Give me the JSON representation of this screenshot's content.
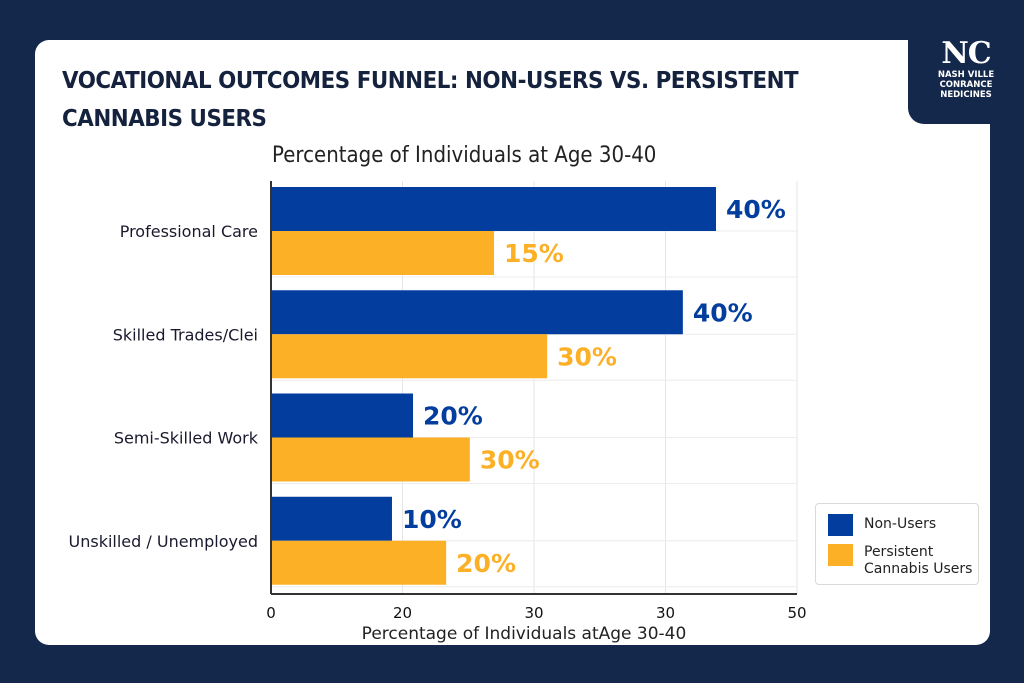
{
  "logo": {
    "monogram": "NC",
    "line1": "NASH VILLE",
    "line2": "CONRANCE",
    "line3": "NEDICINES"
  },
  "chart_data": {
    "type": "bar",
    "orientation": "horizontal",
    "title": "VOCATIONAL OUTCOMES FUNNEL: NON-USERS VS. PERSISTENT CANNABIS USERS",
    "subtitle": "Percentage of Individuals at Age 30-40",
    "xlabel": "Percentage of Individuals atAge 30-40",
    "ylabel": "",
    "categories": [
      "Professional Care",
      "Skilled Trades/Clei",
      "Semi-Skilled Work",
      "Unskilled / Unemployed"
    ],
    "series": [
      {
        "name": "Non-Users",
        "color": "#033e9e",
        "labels": [
          "40%",
          "40%",
          "20%",
          "10%"
        ],
        "values": [
          40,
          40,
          20,
          10
        ],
        "drawn_axis_fraction": [
          0.846,
          0.783,
          0.27,
          0.23
        ]
      },
      {
        "name": "Persistent Cannabis Users",
        "color": "#fbb025",
        "labels": [
          "15%",
          "30%",
          "30%",
          "20%"
        ],
        "values": [
          15,
          30,
          30,
          20
        ],
        "drawn_axis_fraction": [
          0.424,
          0.525,
          0.378,
          0.333
        ]
      }
    ],
    "x_tick_labels": [
      "0",
      "20",
      "30",
      "30",
      "50"
    ],
    "grid": true,
    "legend_position": "bottom-right",
    "legend": [
      {
        "label": "Non-Users",
        "color": "#033e9e"
      },
      {
        "label_line1": "Persistent",
        "label_line2": "Cannabis Users",
        "color": "#fbb025"
      }
    ]
  }
}
